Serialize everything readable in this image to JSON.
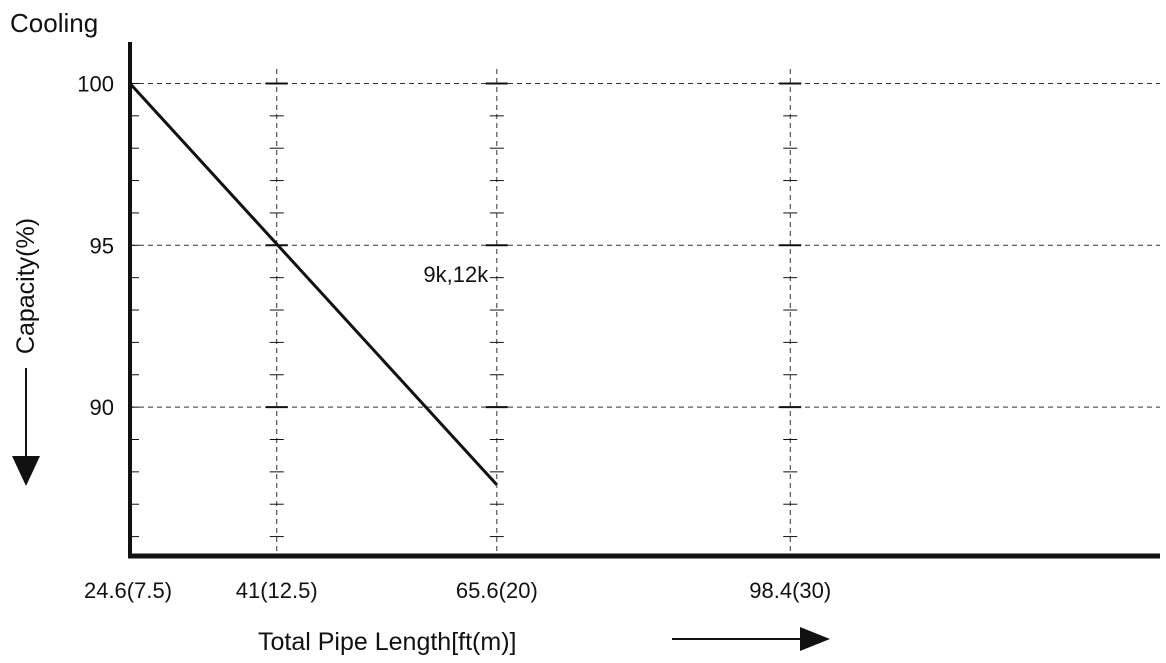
{
  "chart_data": {
    "type": "line",
    "title": "Cooling",
    "xlabel": "Total Pipe Length[ft(m)]",
    "ylabel": "Capacity(%)",
    "x_tick_labels": [
      "24.6(7.5)",
      "41(12.5)",
      "65.6(20)",
      "98.4(30)"
    ],
    "x_tick_values": [
      7.5,
      12.5,
      20,
      30
    ],
    "y_tick_labels": [
      "100",
      "95",
      "90"
    ],
    "y_tick_values": [
      100,
      95,
      90
    ],
    "xlim": [
      7.5,
      42.6
    ],
    "ylim": [
      85.4,
      100.2
    ],
    "grid": true,
    "series": [
      {
        "name": "9k,12k",
        "x": [
          7.5,
          20
        ],
        "y": [
          100,
          87.6
        ]
      }
    ],
    "colors": {
      "line": "#111111",
      "grid": "#333333",
      "axis": "#111111"
    }
  }
}
